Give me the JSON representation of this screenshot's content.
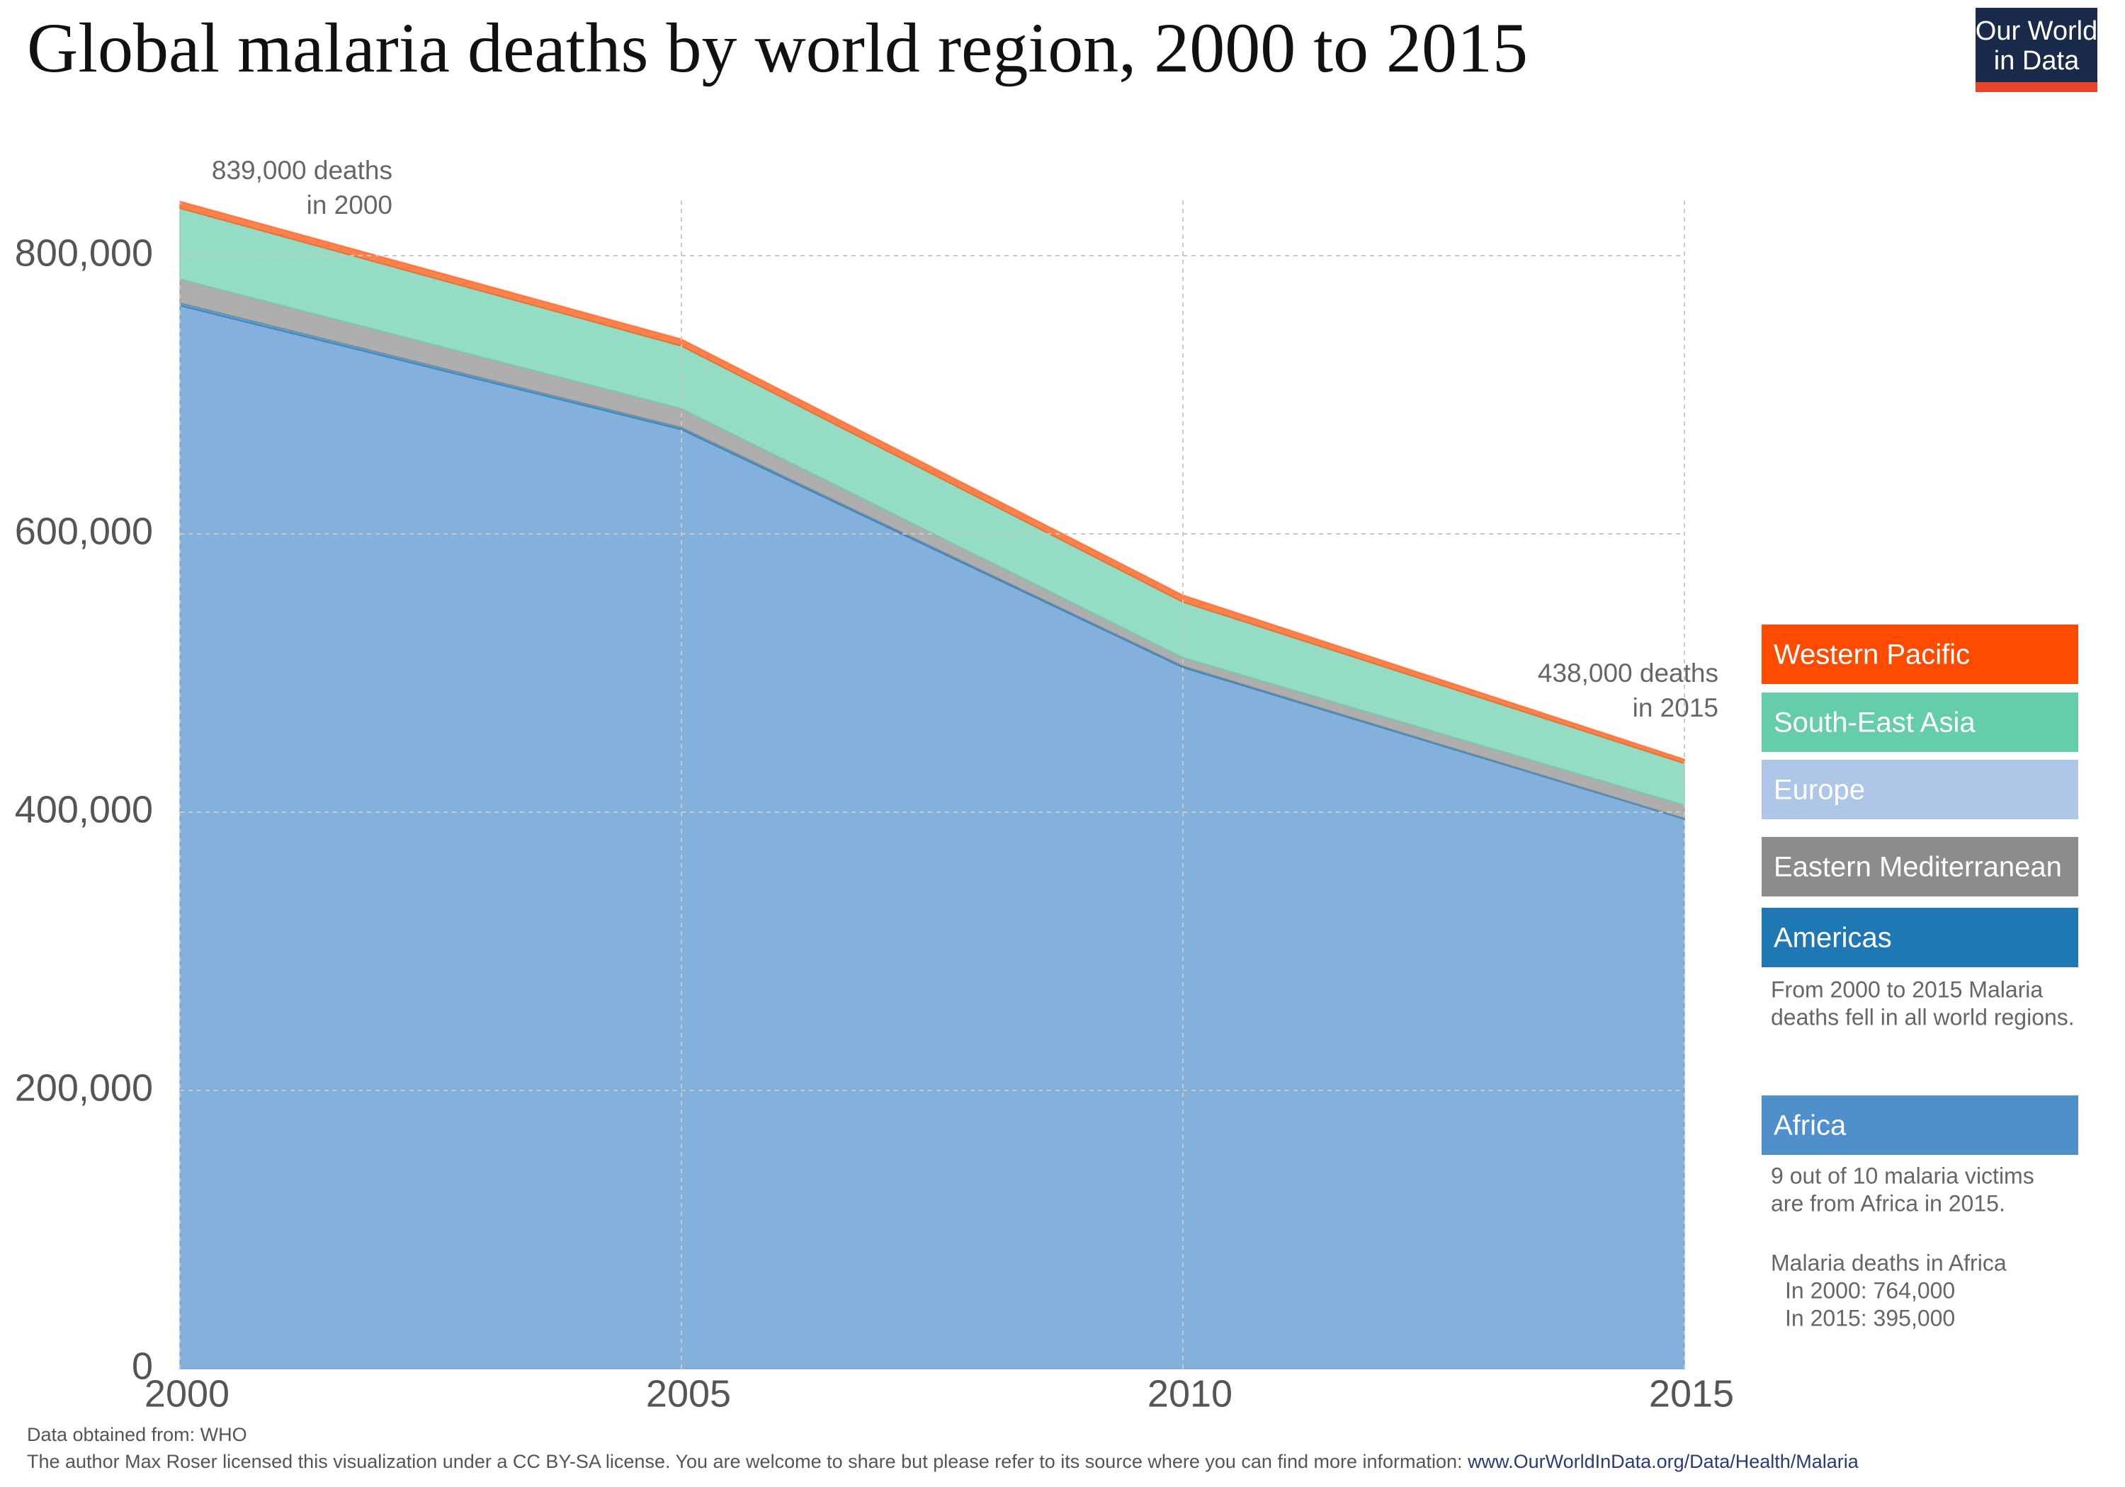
{
  "chart_data": {
    "type": "area",
    "stacked": true,
    "title": "Global malaria deaths by world region, 2000 to 2015",
    "x": [
      2000,
      2005,
      2010,
      2015
    ],
    "xlim": [
      2000,
      2015
    ],
    "xticks": [
      2000,
      2005,
      2010,
      2015
    ],
    "ylim": [
      0,
      800000
    ],
    "yticks": [
      0,
      {
        "value": 200000,
        "label": "200,000"
      },
      {
        "value": 400000,
        "label": "400,000"
      },
      {
        "value": 600000,
        "label": "600,000"
      },
      {
        "value": 800000,
        "label": "800,000"
      }
    ],
    "grid": true,
    "series": [
      {
        "name": "Africa",
        "color": "#4f90cc",
        "values": [
          764000,
          675000,
          504000,
          395000
        ]
      },
      {
        "name": "Americas",
        "color": "#1f77b4",
        "values": [
          2000,
          1500,
          1000,
          500
        ]
      },
      {
        "name": "Eastern Mediterranean",
        "color": "#8c8c8c",
        "values": [
          17000,
          13500,
          6000,
          9500
        ]
      },
      {
        "name": "Europe",
        "color": "#aec7e8",
        "values": [
          0,
          0,
          0,
          0
        ]
      },
      {
        "name": "South-East Asia",
        "color": "#66cdaa",
        "values": [
          51000,
          45000,
          40000,
          30000
        ]
      },
      {
        "name": "Western Pacific",
        "color": "#ff4b00",
        "values": [
          5000,
          5000,
          5000,
          3000
        ]
      }
    ],
    "annotations": [
      [
        "839,000 deaths",
        "in 2000"
      ],
      [
        "438,000 deaths",
        "in 2015"
      ]
    ],
    "legend_note": [
      "From 2000 to 2015 Malaria",
      "deaths fell in all world regions."
    ],
    "africa_note": [
      [
        "9 out of 10 malaria victims",
        "are from Africa in 2015."
      ],
      [
        "Malaria deaths in Africa",
        "In 2000: 764,000",
        "In 2015: 395,000"
      ]
    ],
    "source": "Data obtained from: WHO",
    "license": "The author Max Roser licensed this visualization under a CC BY-SA license. You are welcome to share but please refer to its source where you can find more information: ",
    "link": "www.OurWorldInData.org/Data/Health/Malaria"
  },
  "logo": [
    "Our World",
    "in Data"
  ]
}
